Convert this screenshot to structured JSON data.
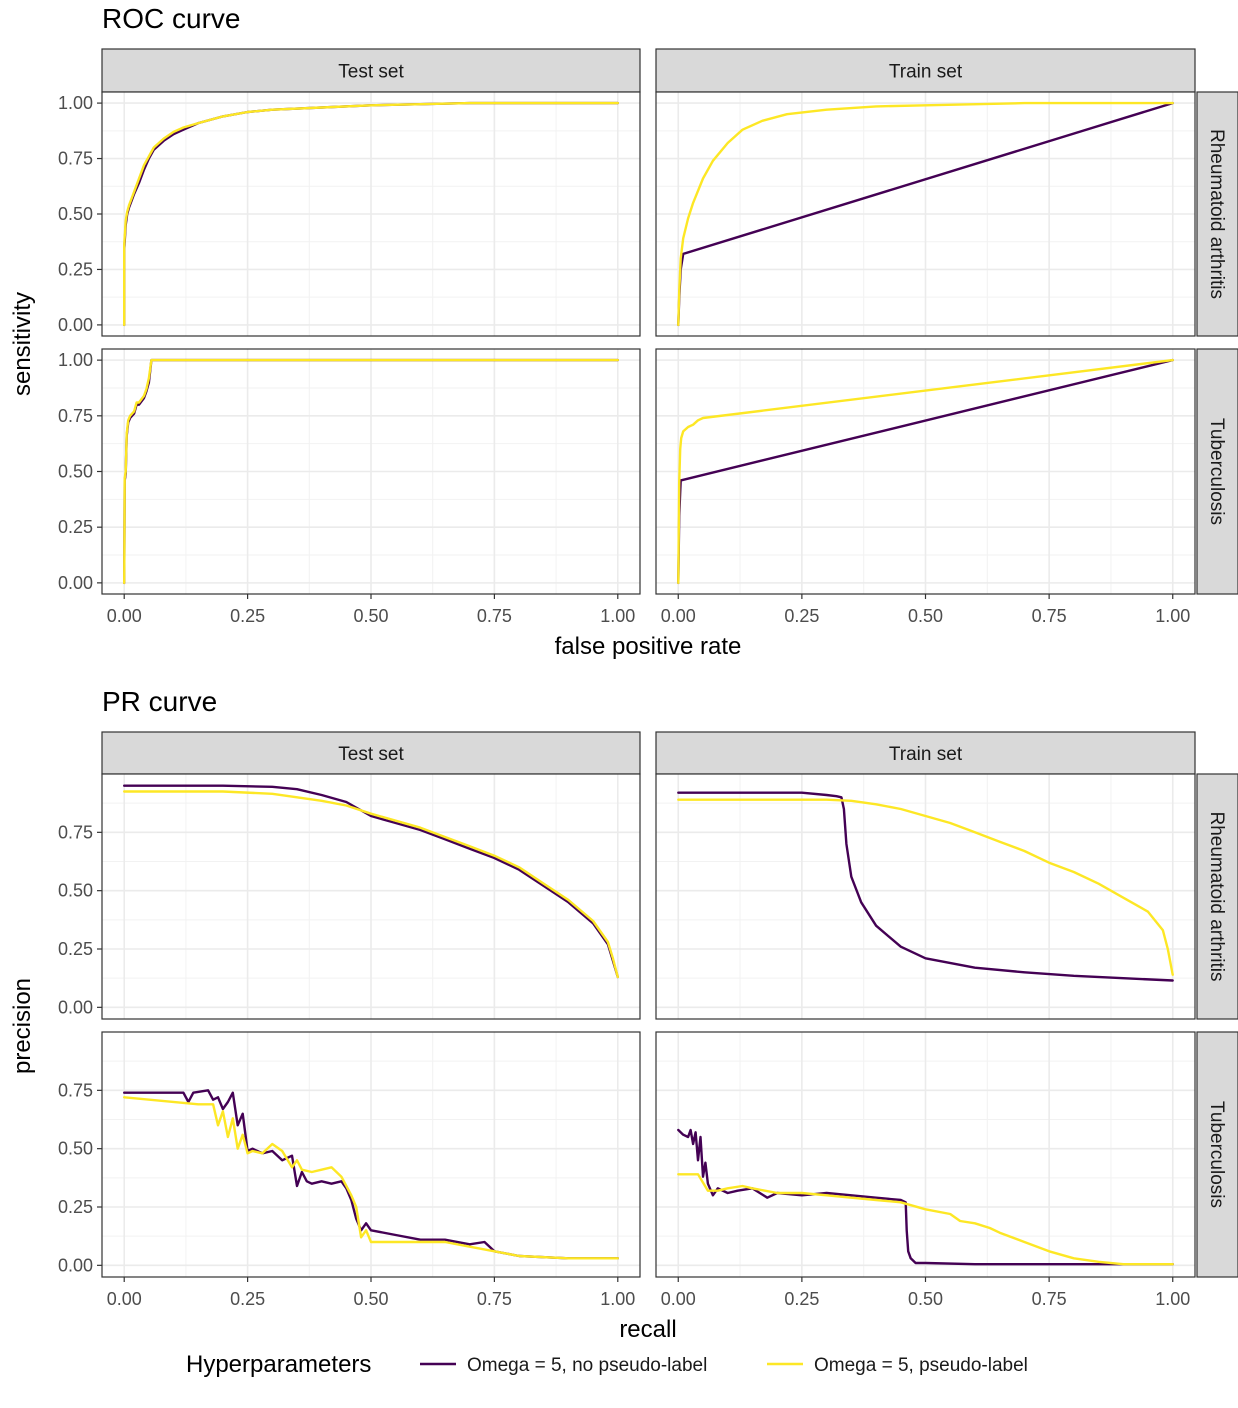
{
  "legend": {
    "title": "Hyperparameters",
    "items": [
      {
        "label": "Omega = 5, no pseudo-label",
        "color": "#440154"
      },
      {
        "label": "Omega = 5, pseudo-label",
        "color": "#FDE725"
      }
    ]
  },
  "colors": {
    "series_a": "#440154",
    "series_b": "#FDE725",
    "strip_fill": "#d9d9d9",
    "grid_major": "#ebebeb",
    "grid_minor": "#f2f2f2"
  },
  "chart_data": [
    {
      "type": "line",
      "title": "ROC curve",
      "xlabel": "false positive rate",
      "ylabel": "sensitivity",
      "xlim": [
        0,
        1
      ],
      "ylim": [
        0,
        1
      ],
      "xticks": [
        "0.00",
        "0.25",
        "0.50",
        "0.75",
        "1.00"
      ],
      "yticks": [
        "0.00",
        "0.25",
        "0.50",
        "0.75",
        "1.00"
      ],
      "columns": [
        "Test set",
        "Train set"
      ],
      "rows": [
        "Rheumatoid arthritis",
        "Tuberculosis"
      ],
      "grid": true,
      "legend_position": "bottom",
      "panels": [
        {
          "column": "Test set",
          "row": "Rheumatoid arthritis",
          "series": [
            {
              "name": "Omega = 5, no pseudo-label",
              "x": [
                0,
                0,
                0.003,
                0.006,
                0.01,
                0.015,
                0.02,
                0.03,
                0.04,
                0.05,
                0.06,
                0.07,
                0.08,
                0.1,
                0.12,
                0.15,
                0.2,
                0.25,
                0.3,
                0.4,
                0.5,
                0.6,
                0.7,
                0.8,
                1.0
              ],
              "y": [
                0,
                0.34,
                0.45,
                0.5,
                0.53,
                0.56,
                0.59,
                0.64,
                0.7,
                0.75,
                0.79,
                0.81,
                0.83,
                0.86,
                0.88,
                0.91,
                0.94,
                0.96,
                0.97,
                0.98,
                0.99,
                0.995,
                1.0,
                1.0,
                1.0
              ]
            },
            {
              "name": "Omega = 5, pseudo-label",
              "x": [
                0,
                0,
                0.003,
                0.006,
                0.01,
                0.015,
                0.02,
                0.03,
                0.04,
                0.05,
                0.06,
                0.07,
                0.08,
                0.1,
                0.12,
                0.15,
                0.2,
                0.25,
                0.3,
                0.4,
                0.5,
                0.6,
                0.7,
                0.8,
                1.0
              ],
              "y": [
                0,
                0.36,
                0.47,
                0.51,
                0.54,
                0.57,
                0.6,
                0.66,
                0.72,
                0.76,
                0.8,
                0.82,
                0.84,
                0.87,
                0.89,
                0.91,
                0.94,
                0.96,
                0.97,
                0.98,
                0.99,
                0.995,
                1.0,
                1.0,
                1.0
              ]
            }
          ]
        },
        {
          "column": "Train set",
          "row": "Rheumatoid arthritis",
          "series": [
            {
              "name": "Omega = 5, no pseudo-label",
              "x": [
                0,
                0.002,
                0.005,
                0.01,
                1.0
              ],
              "y": [
                0,
                0.12,
                0.25,
                0.32,
                1.0
              ]
            },
            {
              "name": "Omega = 5, pseudo-label",
              "x": [
                0,
                0.002,
                0.005,
                0.01,
                0.02,
                0.03,
                0.05,
                0.07,
                0.1,
                0.13,
                0.17,
                0.22,
                0.3,
                0.4,
                0.5,
                0.7,
                1.0
              ],
              "y": [
                0,
                0.15,
                0.3,
                0.39,
                0.48,
                0.55,
                0.66,
                0.74,
                0.82,
                0.88,
                0.92,
                0.95,
                0.97,
                0.985,
                0.99,
                1.0,
                1.0
              ]
            }
          ]
        },
        {
          "column": "Test set",
          "row": "Tuberculosis",
          "series": [
            {
              "name": "Omega = 5, no pseudo-label",
              "x": [
                0,
                0.001,
                0.003,
                0.005,
                0.008,
                0.012,
                0.02,
                0.025,
                0.03,
                0.04,
                0.045,
                0.05,
                0.055,
                0.06,
                1.0
              ],
              "y": [
                0,
                0.46,
                0.49,
                0.66,
                0.72,
                0.74,
                0.76,
                0.8,
                0.8,
                0.83,
                0.86,
                0.9,
                1.0,
                1.0,
                1.0
              ]
            },
            {
              "name": "Omega = 5, pseudo-label",
              "x": [
                0,
                0.001,
                0.003,
                0.005,
                0.008,
                0.012,
                0.02,
                0.025,
                0.03,
                0.04,
                0.045,
                0.05,
                0.055,
                0.06,
                1.0
              ],
              "y": [
                0,
                0.47,
                0.5,
                0.67,
                0.73,
                0.75,
                0.77,
                0.81,
                0.81,
                0.84,
                0.87,
                0.92,
                1.0,
                1.0,
                1.0
              ]
            }
          ]
        },
        {
          "column": "Train set",
          "row": "Tuberculosis",
          "series": [
            {
              "name": "Omega = 5, no pseudo-label",
              "x": [
                0,
                0.002,
                0.005,
                1.0
              ],
              "y": [
                0,
                0.3,
                0.46,
                1.0
              ]
            },
            {
              "name": "Omega = 5, pseudo-label",
              "x": [
                0,
                0.002,
                0.004,
                0.006,
                0.01,
                0.02,
                0.03,
                0.04,
                0.05,
                1.0
              ],
              "y": [
                0,
                0.45,
                0.6,
                0.65,
                0.68,
                0.7,
                0.71,
                0.73,
                0.74,
                1.0
              ]
            }
          ]
        }
      ]
    },
    {
      "type": "line",
      "title": "PR curve",
      "xlabel": "recall",
      "ylabel": "precision",
      "xlim": [
        0,
        1
      ],
      "ylim": [
        0,
        0.98
      ],
      "xticks": [
        "0.00",
        "0.25",
        "0.50",
        "0.75",
        "1.00"
      ],
      "yticks": [
        "0.00",
        "0.25",
        "0.50",
        "0.75"
      ],
      "columns": [
        "Test set",
        "Train set"
      ],
      "rows": [
        "Rheumatoid arthritis",
        "Tuberculosis"
      ],
      "grid": true,
      "legend_position": "bottom",
      "panels": [
        {
          "column": "Test set",
          "row": "Rheumatoid arthritis",
          "series": [
            {
              "name": "Omega = 5, no pseudo-label",
              "x": [
                0,
                0.1,
                0.2,
                0.3,
                0.35,
                0.4,
                0.45,
                0.5,
                0.55,
                0.6,
                0.65,
                0.7,
                0.75,
                0.8,
                0.85,
                0.9,
                0.95,
                0.98,
                0.99,
                1.0
              ],
              "y": [
                0.95,
                0.95,
                0.95,
                0.945,
                0.935,
                0.91,
                0.88,
                0.82,
                0.79,
                0.76,
                0.72,
                0.68,
                0.64,
                0.59,
                0.52,
                0.45,
                0.36,
                0.27,
                0.2,
                0.13
              ]
            },
            {
              "name": "Omega = 5, pseudo-label",
              "x": [
                0,
                0.1,
                0.2,
                0.3,
                0.35,
                0.4,
                0.45,
                0.5,
                0.55,
                0.6,
                0.65,
                0.7,
                0.75,
                0.8,
                0.85,
                0.9,
                0.95,
                0.98,
                0.99,
                1.0
              ],
              "y": [
                0.925,
                0.925,
                0.925,
                0.915,
                0.9,
                0.885,
                0.865,
                0.83,
                0.8,
                0.77,
                0.73,
                0.69,
                0.65,
                0.6,
                0.53,
                0.46,
                0.37,
                0.28,
                0.21,
                0.13
              ]
            }
          ]
        },
        {
          "column": "Train set",
          "row": "Rheumatoid arthritis",
          "series": [
            {
              "name": "Omega = 5, no pseudo-label",
              "x": [
                0,
                0.1,
                0.2,
                0.25,
                0.3,
                0.32,
                0.33,
                0.335,
                0.34,
                0.35,
                0.37,
                0.4,
                0.45,
                0.5,
                0.6,
                0.7,
                0.8,
                0.9,
                1.0
              ],
              "y": [
                0.92,
                0.92,
                0.92,
                0.92,
                0.91,
                0.905,
                0.9,
                0.85,
                0.7,
                0.56,
                0.45,
                0.35,
                0.26,
                0.21,
                0.17,
                0.15,
                0.135,
                0.125,
                0.115
              ]
            },
            {
              "name": "Omega = 5, pseudo-label",
              "x": [
                0,
                0.1,
                0.2,
                0.3,
                0.35,
                0.4,
                0.45,
                0.5,
                0.55,
                0.6,
                0.65,
                0.7,
                0.75,
                0.8,
                0.85,
                0.9,
                0.95,
                0.98,
                0.99,
                1.0
              ],
              "y": [
                0.89,
                0.89,
                0.89,
                0.89,
                0.885,
                0.87,
                0.85,
                0.82,
                0.79,
                0.75,
                0.71,
                0.67,
                0.62,
                0.58,
                0.53,
                0.47,
                0.41,
                0.33,
                0.25,
                0.14
              ]
            }
          ]
        },
        {
          "column": "Test set",
          "row": "Tuberculosis",
          "series": [
            {
              "name": "Omega = 5, no pseudo-label",
              "x": [
                0,
                0.12,
                0.13,
                0.14,
                0.17,
                0.18,
                0.19,
                0.2,
                0.21,
                0.22,
                0.23,
                0.24,
                0.25,
                0.26,
                0.28,
                0.3,
                0.32,
                0.34,
                0.35,
                0.36,
                0.37,
                0.38,
                0.4,
                0.42,
                0.44,
                0.45,
                0.46,
                0.47,
                0.48,
                0.49,
                0.5,
                0.55,
                0.6,
                0.65,
                0.7,
                0.73,
                0.75,
                0.8,
                0.9,
                1.0
              ],
              "y": [
                0.74,
                0.74,
                0.7,
                0.74,
                0.75,
                0.71,
                0.72,
                0.67,
                0.7,
                0.74,
                0.6,
                0.65,
                0.49,
                0.5,
                0.48,
                0.49,
                0.45,
                0.47,
                0.34,
                0.4,
                0.36,
                0.35,
                0.36,
                0.35,
                0.36,
                0.33,
                0.28,
                0.2,
                0.15,
                0.18,
                0.15,
                0.13,
                0.11,
                0.11,
                0.09,
                0.1,
                0.06,
                0.04,
                0.03,
                0.03
              ]
            },
            {
              "name": "Omega = 5, pseudo-label",
              "x": [
                0,
                0.15,
                0.18,
                0.19,
                0.2,
                0.21,
                0.22,
                0.23,
                0.24,
                0.25,
                0.26,
                0.28,
                0.3,
                0.32,
                0.34,
                0.35,
                0.36,
                0.38,
                0.4,
                0.42,
                0.44,
                0.46,
                0.47,
                0.48,
                0.49,
                0.5,
                0.55,
                0.6,
                0.65,
                0.7,
                0.75,
                0.8,
                0.9,
                1.0
              ],
              "y": [
                0.72,
                0.69,
                0.69,
                0.6,
                0.66,
                0.55,
                0.63,
                0.5,
                0.56,
                0.48,
                0.49,
                0.48,
                0.52,
                0.49,
                0.42,
                0.45,
                0.41,
                0.4,
                0.41,
                0.42,
                0.38,
                0.3,
                0.25,
                0.12,
                0.15,
                0.1,
                0.1,
                0.1,
                0.1,
                0.08,
                0.06,
                0.04,
                0.03,
                0.03
              ]
            }
          ]
        },
        {
          "column": "Train set",
          "row": "Tuberculosis",
          "series": [
            {
              "name": "Omega = 5, no pseudo-label",
              "x": [
                0,
                0.01,
                0.02,
                0.025,
                0.03,
                0.035,
                0.04,
                0.045,
                0.05,
                0.055,
                0.06,
                0.07,
                0.08,
                0.1,
                0.12,
                0.15,
                0.18,
                0.2,
                0.25,
                0.3,
                0.35,
                0.4,
                0.45,
                0.46,
                0.462,
                0.465,
                0.47,
                0.48,
                0.5,
                0.6,
                0.7,
                0.8,
                1.0
              ],
              "y": [
                0.58,
                0.56,
                0.55,
                0.58,
                0.52,
                0.57,
                0.45,
                0.55,
                0.38,
                0.44,
                0.35,
                0.3,
                0.33,
                0.31,
                0.32,
                0.33,
                0.29,
                0.31,
                0.3,
                0.31,
                0.3,
                0.29,
                0.28,
                0.27,
                0.15,
                0.06,
                0.03,
                0.01,
                0.01,
                0.005,
                0.005,
                0.005,
                0.005
              ]
            },
            {
              "name": "Omega = 5, pseudo-label",
              "x": [
                0,
                0.02,
                0.04,
                0.06,
                0.08,
                0.1,
                0.13,
                0.15,
                0.2,
                0.25,
                0.3,
                0.35,
                0.4,
                0.45,
                0.5,
                0.55,
                0.57,
                0.6,
                0.63,
                0.65,
                0.7,
                0.75,
                0.8,
                0.85,
                0.9,
                1.0
              ],
              "y": [
                0.39,
                0.39,
                0.39,
                0.32,
                0.32,
                0.33,
                0.34,
                0.33,
                0.31,
                0.31,
                0.3,
                0.29,
                0.28,
                0.27,
                0.24,
                0.22,
                0.19,
                0.18,
                0.16,
                0.14,
                0.1,
                0.06,
                0.03,
                0.015,
                0.005,
                0.005
              ]
            }
          ]
        }
      ]
    }
  ]
}
